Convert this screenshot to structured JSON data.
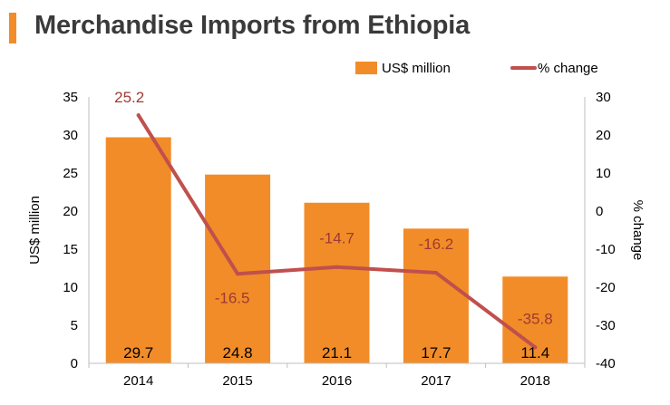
{
  "title": "Merchandise Imports from Ethiopia",
  "chart_data": {
    "type": "bar",
    "categories": [
      "2014",
      "2015",
      "2016",
      "2017",
      "2018"
    ],
    "series": [
      {
        "name": "US$ million",
        "kind": "bar",
        "axis": "left",
        "values": [
          29.7,
          24.8,
          21.1,
          17.7,
          11.4
        ],
        "color": "#f28c28"
      },
      {
        "name": "% change",
        "kind": "line",
        "axis": "right",
        "values": [
          25.2,
          -16.5,
          -14.7,
          -16.2,
          -35.8
        ],
        "color": "#c0504d"
      }
    ],
    "ylabel": "US$ million",
    "y2label": "% change",
    "ylim": [
      0,
      35
    ],
    "y2lim": [
      -40,
      30
    ],
    "yticks": [
      0,
      5,
      10,
      15,
      20,
      25,
      30,
      35
    ],
    "y2ticks": [
      -40,
      -30,
      -20,
      -10,
      0,
      10,
      20,
      30
    ],
    "bar_labels": [
      "29.7",
      "24.8",
      "21.1",
      "17.7",
      "11.4"
    ],
    "line_labels": [
      "25.2",
      "-16.5",
      "-14.7",
      "-16.2",
      "-35.8"
    ],
    "legend_position": "top-right",
    "grid": false,
    "label_color": "#9e3a32"
  }
}
